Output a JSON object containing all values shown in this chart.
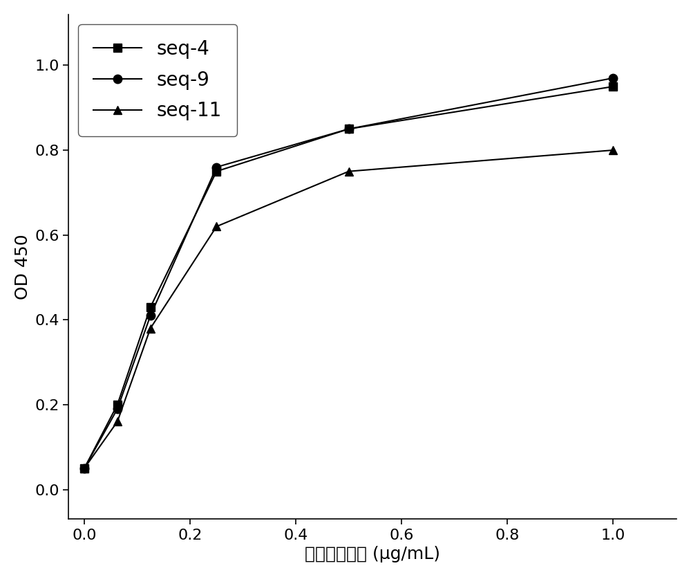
{
  "series": [
    {
      "label": "seq-4",
      "x": [
        0.0,
        0.0625,
        0.125,
        0.25,
        0.5,
        1.0
      ],
      "y": [
        0.05,
        0.2,
        0.43,
        0.75,
        0.85,
        0.95
      ],
      "marker": "s",
      "color": "#000000"
    },
    {
      "label": "seq-9",
      "x": [
        0.0,
        0.0625,
        0.125,
        0.25,
        0.5,
        1.0
      ],
      "y": [
        0.05,
        0.19,
        0.41,
        0.76,
        0.85,
        0.97
      ],
      "marker": "o",
      "color": "#000000"
    },
    {
      "label": "seq-11",
      "x": [
        0.0,
        0.0625,
        0.125,
        0.25,
        0.5,
        1.0
      ],
      "y": [
        0.05,
        0.16,
        0.38,
        0.62,
        0.75,
        0.8
      ],
      "marker": "^",
      "color": "#000000"
    }
  ],
  "xlabel": "单域抗体浓度 (μg/mL)",
  "ylabel": "OD 450",
  "xlim": [
    -0.03,
    1.12
  ],
  "ylim": [
    -0.07,
    1.12
  ],
  "yticks": [
    0.0,
    0.2,
    0.4,
    0.6,
    0.8,
    1.0
  ],
  "xticks": [
    0.0,
    0.2,
    0.4,
    0.6,
    0.8,
    1.0
  ],
  "legend_loc": "upper left",
  "background_color": "#ffffff",
  "linewidth": 1.5,
  "markersize": 9,
  "label_fontsize": 18,
  "tick_fontsize": 16,
  "legend_fontsize": 20
}
